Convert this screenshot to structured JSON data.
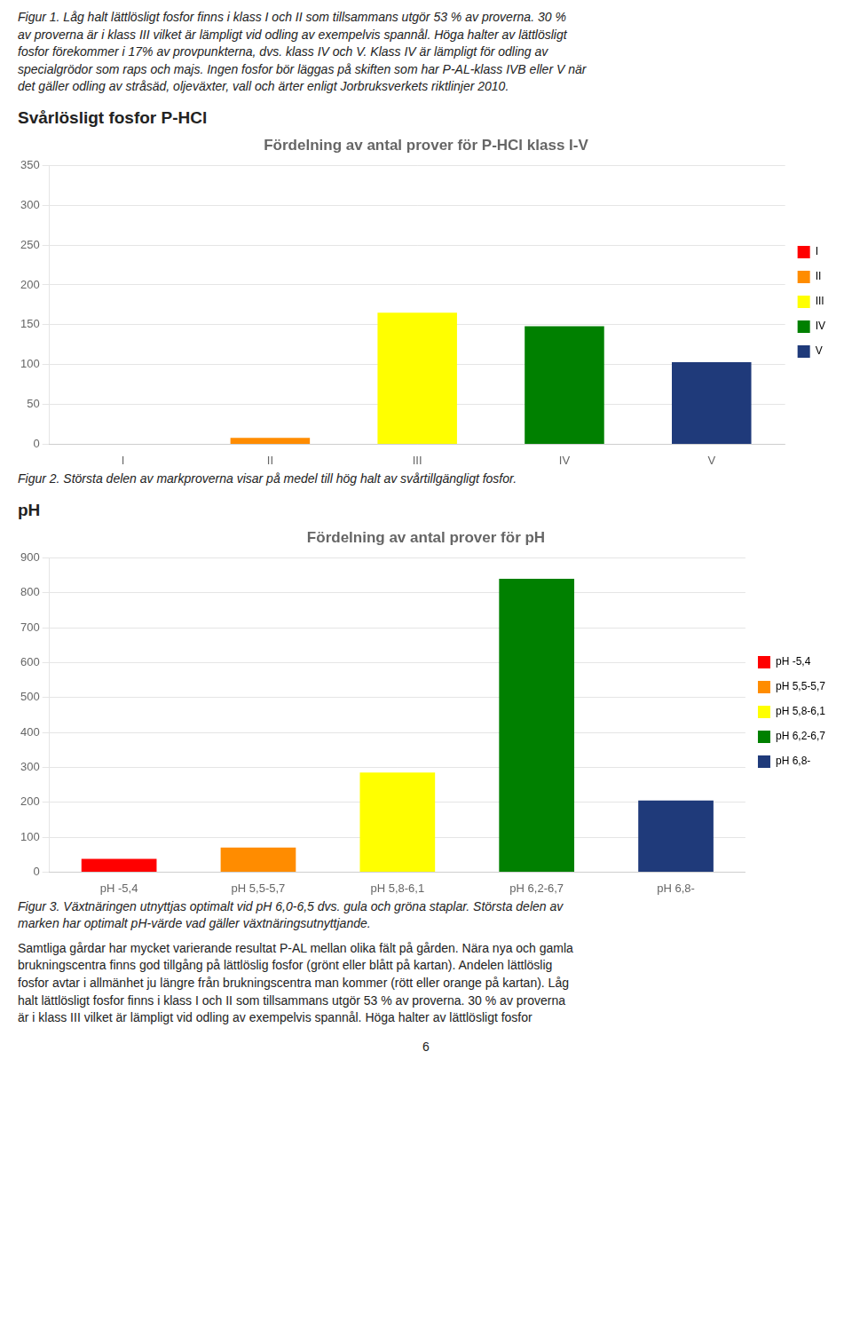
{
  "texts": [
    "Figur 1. Låg halt lättlösligt fosfor finns i klass I och II som tillsammans utgör 53 % av proverna. 30 %\nav proverna är i klass III vilket är lämpligt vid odling av exempelvis spannål. Höga halter av lättlösligt\nfosfor förekommer i 17% av provpunkterna, dvs. klass IV och V. Klass IV är lämpligt för odling av\nspecialgrödor som raps och majs. Ingen fosfor bör läggas på skiften som har P-AL-klass IVB eller V när\ndet gäller odling av stråsäd, oljeväxter, vall och ärter enligt Jorbruksverkets riktlinjer 2010.",
    "Svårlösligt fosfor P-HCl",
    "Figur 2. Största delen av markproverna visar på medel till hög halt av svårtillgängligt fosfor.",
    "pH",
    "Figur 3. Växtnäringen utnyttjas optimalt vid pH 6,0-6,5 dvs. gula och gröna staplar. Största delen av\nmarken har optimalt pH-värde vad gäller växtnäringsutnyttjande.",
    "Samtliga gårdar har mycket varierande resultat P-AL mellan olika fält på gården. Nära nya och gamla\nbrukningscentra finns god tillgång på lättlöslig fosfor (grönt eller blått på kartan). Andelen lättlöslig\nfosfor avtar i allmänhet ju längre från brukningscentra man kommer (rött eller orange på kartan). Låg\nhalt lättlösligt fosfor finns i klass I och II som tillsammans utgör 53 % av proverna. 30 % av proverna\när i klass III vilket är lämpligt vid odling av exempelvis spannål. Höga halter av lättlösligt fosfor",
    "6"
  ],
  "chart_data": [
    {
      "type": "bar",
      "title": "Fördelning av antal prover för P-HCl klass I-V",
      "categories": [
        "I",
        "II",
        "III",
        "IV",
        "V"
      ],
      "values": [
        0,
        8,
        165,
        148,
        103
      ],
      "colors": [
        "#FF0000",
        "#FF8C00",
        "#FFFF00",
        "#008000",
        "#1F3A7A"
      ],
      "ylim": [
        0,
        350
      ],
      "yticks": [
        0,
        50,
        100,
        150,
        200,
        250,
        300,
        350
      ],
      "grid": true,
      "legend": "right"
    },
    {
      "type": "bar",
      "title": "Fördelning av antal prover för pH",
      "categories": [
        "pH -5,4",
        "pH 5,5-5,7",
        "pH 5,8-6,1",
        "pH 6,2-6,7",
        "pH 6,8-"
      ],
      "values": [
        38,
        70,
        285,
        840,
        205
      ],
      "colors": [
        "#FF0000",
        "#FF8C00",
        "#FFFF00",
        "#008000",
        "#1F3A7A"
      ],
      "ylim": [
        0,
        900
      ],
      "yticks": [
        0,
        100,
        200,
        300,
        400,
        500,
        600,
        700,
        800,
        900
      ],
      "grid": true,
      "legend": "right"
    }
  ]
}
